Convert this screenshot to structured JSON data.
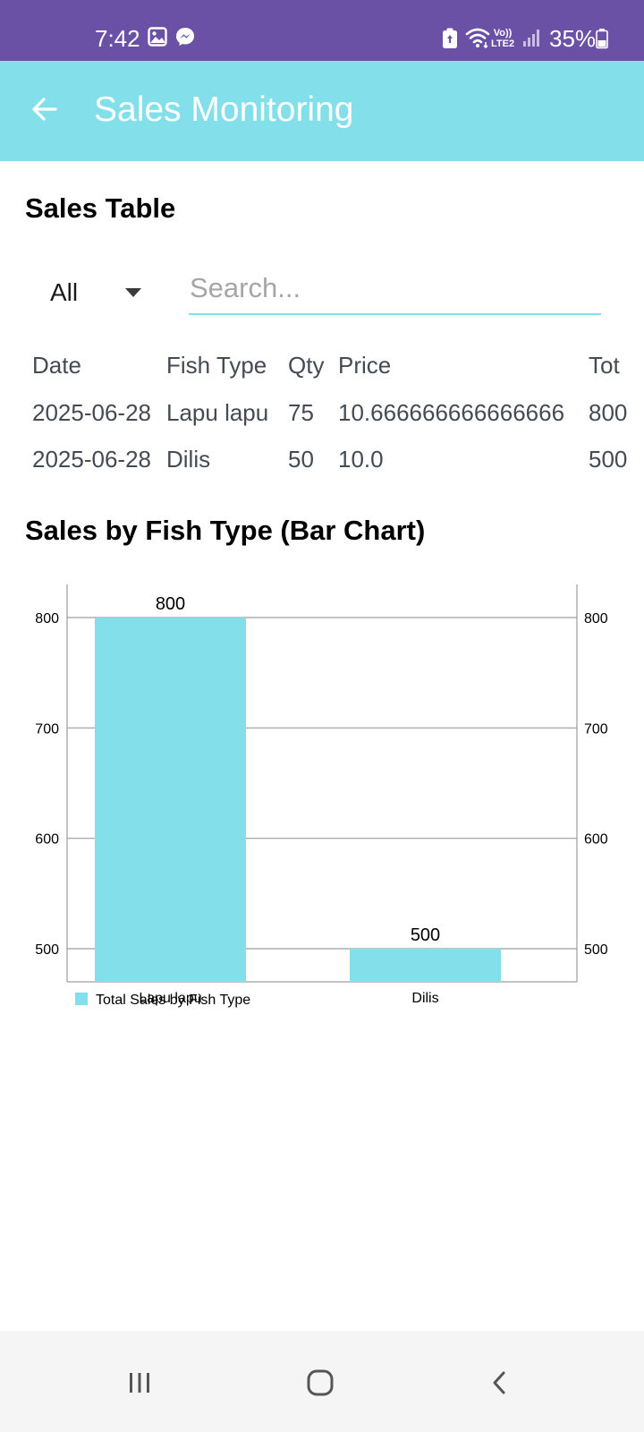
{
  "status_bar": {
    "time": "7:42",
    "battery": "35%",
    "icons": [
      "gallery-icon",
      "messenger-icon",
      "battery-saver-icon",
      "wifi-icon",
      "volte-icon",
      "signal-icon",
      "battery-icon"
    ],
    "volte_top": "Vo))",
    "volte_bottom": "LTE2"
  },
  "app_bar": {
    "title": "Sales Monitoring",
    "back_icon": "arrow-left-icon"
  },
  "sales_table": {
    "heading": "Sales Table",
    "filter": {
      "selected": "All"
    },
    "search": {
      "placeholder": "Search...",
      "value": ""
    },
    "columns": [
      "Date",
      "Fish Type",
      "Qty",
      "Price",
      "Tot"
    ],
    "rows": [
      {
        "date": "2025-06-28",
        "fish_type": "Lapu lapu",
        "qty": "75",
        "price": "10.666666666666666",
        "total": "800"
      },
      {
        "date": "2025-06-28",
        "fish_type": "Dilis",
        "qty": "50",
        "price": "10.0",
        "total": "500"
      }
    ]
  },
  "chart_section": {
    "heading": "Sales by Fish Type (Bar Chart)"
  },
  "chart_data": {
    "type": "bar",
    "categories": [
      "Lapu lapu",
      "Dilis"
    ],
    "series": [
      {
        "name": "Total Sales by Fish Type",
        "values": [
          800,
          500
        ],
        "color": "#83dfea"
      }
    ],
    "value_labels": [
      "800",
      "500"
    ],
    "yticks": [
      500,
      600,
      700,
      800
    ],
    "ytick_labels": [
      "500",
      "600",
      "700",
      "800"
    ],
    "ylim": [
      470,
      830
    ],
    "grid": true,
    "right_axis": true,
    "legend_position": "bottom-left"
  },
  "nav_bar": {
    "icons": [
      "recent-apps-icon",
      "home-icon",
      "back-icon"
    ]
  }
}
